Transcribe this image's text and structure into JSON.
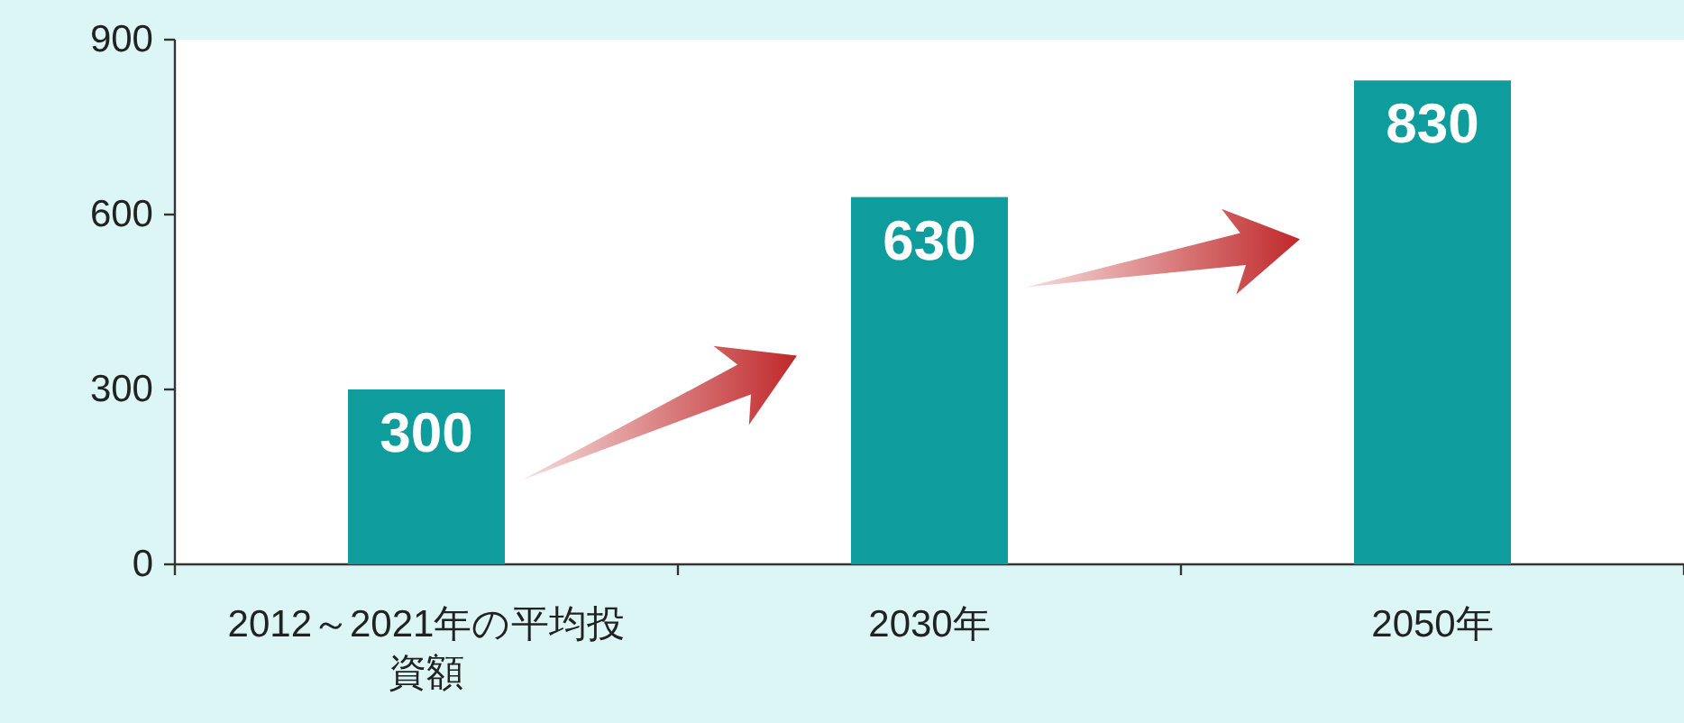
{
  "chart_data": {
    "type": "bar",
    "categories": [
      "2012～2021年の平均投資額",
      "2030年",
      "2050年"
    ],
    "values": [
      300,
      630,
      830
    ],
    "color": "#0e9c9c",
    "ylim": [
      0,
      900
    ],
    "yticks": [
      0,
      300,
      600,
      900
    ],
    "data_labels": true
  }
}
